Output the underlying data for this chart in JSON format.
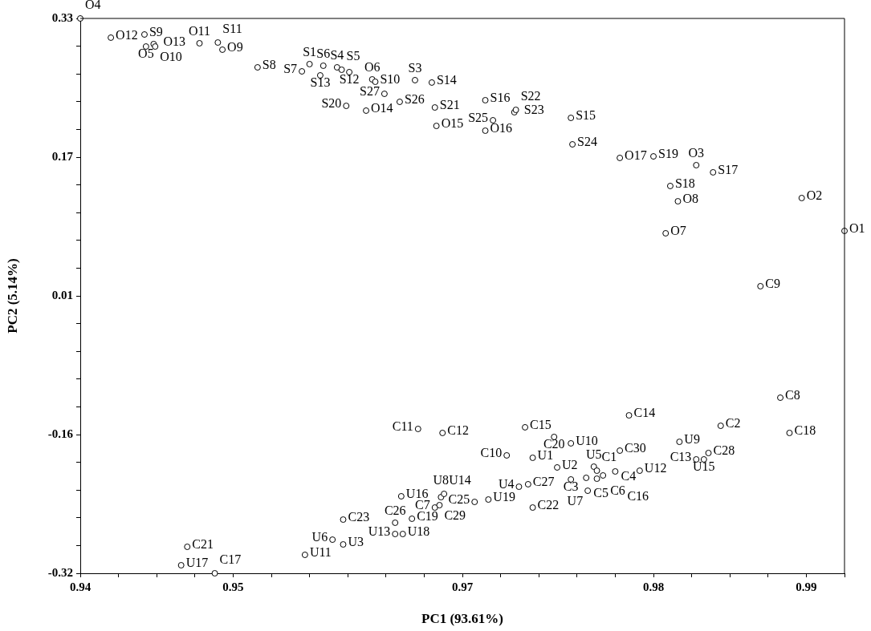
{
  "chart_data": {
    "type": "scatter",
    "xlabel": "PC1 (93.61%)",
    "ylabel": "PC2 (5.14%)",
    "marker": "circle",
    "xlim": [
      0.94,
      0.99
    ],
    "ylim": [
      -0.32,
      0.33
    ],
    "xticks": [
      0.94,
      {
        "value": 0.9425,
        "label": null
      },
      {
        "value": 0.945,
        "label": null
      },
      {
        "value": 0.9475,
        "label": null
      },
      0.95,
      {
        "value": 0.9525,
        "label": null
      },
      {
        "value": 0.955,
        "label": null
      },
      {
        "value": 0.9575,
        "label": null
      },
      {
        "value": 0.96,
        "label": null
      },
      {
        "value": 0.9625,
        "label": null
      },
      {
        "value": 0.965,
        "label": "0.97"
      },
      {
        "value": 0.9675,
        "label": null
      },
      {
        "value": 0.97,
        "label": null
      },
      {
        "value": 0.9725,
        "label": null
      },
      {
        "value": 0.975,
        "label": null
      },
      {
        "value": 0.9775,
        "label": "0.98"
      },
      {
        "value": 0.98,
        "label": null
      },
      {
        "value": 0.9825,
        "label": null
      },
      {
        "value": 0.985,
        "label": null
      },
      {
        "value": 0.9875,
        "label": "0.99"
      },
      {
        "value": 0.99,
        "label": null
      }
    ],
    "yticks": [
      -0.32,
      {
        "value": -0.2875,
        "label": null
      },
      {
        "value": -0.255,
        "label": null
      },
      {
        "value": -0.2225,
        "label": null
      },
      {
        "value": -0.19,
        "label": null
      },
      {
        "value": -0.1575,
        "label": "-0.16"
      },
      {
        "value": -0.125,
        "label": null
      },
      {
        "value": -0.0925,
        "label": null
      },
      {
        "value": -0.06,
        "label": null
      },
      {
        "value": -0.0275,
        "label": null
      },
      {
        "value": 0.005,
        "label": "0.01"
      },
      {
        "value": 0.0375,
        "label": null
      },
      {
        "value": 0.07,
        "label": null
      },
      {
        "value": 0.1025,
        "label": null
      },
      {
        "value": 0.135,
        "label": null
      },
      {
        "value": 0.1675,
        "label": "0.17"
      },
      {
        "value": 0.2,
        "label": null
      },
      {
        "value": 0.2325,
        "label": null
      },
      {
        "value": 0.265,
        "label": null
      },
      {
        "value": 0.2975,
        "label": null
      },
      0.33
    ],
    "series": [
      {
        "color": "#000000",
        "x": [
          0.94,
          0.942,
          0.9442,
          0.9443,
          0.9448,
          0.9449,
          0.9478,
          0.949,
          0.9493,
          0.9516,
          0.9545,
          0.955,
          0.9557,
          0.9559,
          0.9568,
          0.9571,
          0.9576,
          0.9591,
          0.9593,
          0.9599,
          0.9609,
          0.9619,
          0.963,
          0.9574,
          0.9587,
          0.9632,
          0.9633,
          0.9665,
          0.9665,
          0.967,
          0.9684,
          0.9685,
          0.9721,
          0.9722,
          0.9753,
          0.9775,
          0.9803,
          0.9814,
          0.9786,
          0.9791,
          0.9872,
          0.9783,
          0.99,
          0.9845,
          0.9621,
          0.9637,
          0.9691,
          0.971,
          0.9721,
          0.9679,
          0.9696,
          0.9759,
          0.9753,
          0.9712,
          0.9687,
          0.9693,
          0.9667,
          0.9658,
          0.9696,
          0.9721,
          0.9731,
          0.9732,
          0.9736,
          0.9738,
          0.9738,
          0.9742,
          0.975,
          0.9766,
          0.9858,
          0.9819,
          0.9864,
          0.9792,
          0.9803,
          0.9808,
          0.9811,
          0.947,
          0.9466,
          0.9488,
          0.9547,
          0.9565,
          0.9572,
          0.9572,
          0.961,
          0.9606,
          0.9606,
          0.9611,
          0.9617,
          0.9632,
          0.9635,
          0.9636,
          0.9638
        ],
        "values": [
          0.33,
          0.3075,
          0.3112,
          0.2971,
          0.3,
          0.2971,
          0.3009,
          0.3018,
          0.2934,
          0.2727,
          0.268,
          0.2765,
          0.2633,
          0.2746,
          0.2727,
          0.2699,
          0.2671,
          0.2586,
          0.2558,
          0.2417,
          0.2323,
          0.2577,
          0.2549,
          0.2276,
          0.222,
          0.2257,
          0.2041,
          0.2342,
          0.1985,
          0.2107,
          0.2201,
          0.2229,
          0.2135,
          0.1825,
          0.1666,
          0.1684,
          0.1581,
          0.1497,
          0.1337,
          0.1158,
          0.1196,
          0.0783,
          0.0811,
          0.0163,
          -0.1509,
          -0.1556,
          -0.149,
          -0.1603,
          -0.1678,
          -0.1819,
          -0.1847,
          -0.135,
          -0.1763,
          -0.196,
          -0.2186,
          -0.2157,
          -0.2336,
          -0.2364,
          -0.243,
          -0.2101,
          -0.2082,
          -0.2233,
          -0.1951,
          -0.1998,
          -0.2092,
          -0.2054,
          -0.2007,
          -0.1998,
          -0.1143,
          -0.1472,
          -0.1556,
          -0.166,
          -0.1866,
          -0.1866,
          -0.1791,
          -0.289,
          -0.3106,
          -0.32,
          -0.2984,
          -0.2806,
          -0.2571,
          -0.2862,
          -0.2298,
          -0.2608,
          -0.274,
          -0.274,
          -0.2561,
          -0.243,
          -0.2402,
          -0.2308,
          -0.227
        ]
      }
    ],
    "annotations": [
      {
        "text": "O4",
        "x": 0.94,
        "y": 0.33
      },
      {
        "text": "O12",
        "x": 0.942,
        "y": 0.3075
      },
      {
        "text": "S9",
        "x": 0.9442,
        "y": 0.3112
      },
      {
        "text": "O5",
        "x": 0.9443,
        "y": 0.2971
      },
      {
        "text": "O13",
        "x": 0.9448,
        "y": 0.3
      },
      {
        "text": "O10",
        "x": 0.9449,
        "y": 0.2971
      },
      {
        "text": "O11",
        "x": 0.9478,
        "y": 0.3009
      },
      {
        "text": "S11",
        "x": 0.949,
        "y": 0.3018
      },
      {
        "text": "O9",
        "x": 0.9493,
        "y": 0.2934
      },
      {
        "text": "S8",
        "x": 0.9516,
        "y": 0.2727
      },
      {
        "text": "S7",
        "x": 0.9545,
        "y": 0.268
      },
      {
        "text": "S1",
        "x": 0.955,
        "y": 0.2765
      },
      {
        "text": "S13",
        "x": 0.9557,
        "y": 0.2633
      },
      {
        "text": "S6",
        "x": 0.9559,
        "y": 0.2746
      },
      {
        "text": "S4",
        "x": 0.9568,
        "y": 0.2727
      },
      {
        "text": "S5",
        "x": 0.9571,
        "y": 0.2699
      },
      {
        "text": "S12",
        "x": 0.9576,
        "y": 0.2671
      },
      {
        "text": "O6",
        "x": 0.9591,
        "y": 0.2586
      },
      {
        "text": "S10",
        "x": 0.9593,
        "y": 0.2558
      },
      {
        "text": "S27",
        "x": 0.9599,
        "y": 0.2417
      },
      {
        "text": "S26",
        "x": 0.9609,
        "y": 0.2323
      },
      {
        "text": "S3",
        "x": 0.9619,
        "y": 0.2577
      },
      {
        "text": "S14",
        "x": 0.963,
        "y": 0.2549
      },
      {
        "text": "S20",
        "x": 0.9574,
        "y": 0.2276
      },
      {
        "text": "O14",
        "x": 0.9587,
        "y": 0.222
      },
      {
        "text": "S21",
        "x": 0.9632,
        "y": 0.2257
      },
      {
        "text": "O15",
        "x": 0.9633,
        "y": 0.2041
      },
      {
        "text": "S16",
        "x": 0.9665,
        "y": 0.2342
      },
      {
        "text": "O16",
        "x": 0.9665,
        "y": 0.1985
      },
      {
        "text": "S25",
        "x": 0.967,
        "y": 0.2107
      },
      {
        "text": "S23",
        "x": 0.9684,
        "y": 0.2201
      },
      {
        "text": "S22",
        "x": 0.9685,
        "y": 0.2229
      },
      {
        "text": "S15",
        "x": 0.9721,
        "y": 0.2135
      },
      {
        "text": "S24",
        "x": 0.9722,
        "y": 0.1825
      },
      {
        "text": "O17",
        "x": 0.9753,
        "y": 0.1666
      },
      {
        "text": "S19",
        "x": 0.9775,
        "y": 0.1684
      },
      {
        "text": "O3",
        "x": 0.9803,
        "y": 0.1581
      },
      {
        "text": "S17",
        "x": 0.9814,
        "y": 0.1497
      },
      {
        "text": "S18",
        "x": 0.9786,
        "y": 0.1337
      },
      {
        "text": "O8",
        "x": 0.9791,
        "y": 0.1158
      },
      {
        "text": "O2",
        "x": 0.9872,
        "y": 0.1196
      },
      {
        "text": "O7",
        "x": 0.9783,
        "y": 0.0783
      },
      {
        "text": "O1",
        "x": 0.99,
        "y": 0.0811
      },
      {
        "text": "C9",
        "x": 0.9845,
        "y": 0.0163
      },
      {
        "text": "C11",
        "x": 0.9621,
        "y": -0.1509
      },
      {
        "text": "C12",
        "x": 0.9637,
        "y": -0.1556
      },
      {
        "text": "C15",
        "x": 0.9691,
        "y": -0.149
      },
      {
        "text": "C20",
        "x": 0.971,
        "y": -0.1603
      },
      {
        "text": "U10",
        "x": 0.9721,
        "y": -0.1678
      },
      {
        "text": "C10",
        "x": 0.9679,
        "y": -0.1819
      },
      {
        "text": "U1",
        "x": 0.9696,
        "y": -0.1847
      },
      {
        "text": "C14",
        "x": 0.9759,
        "y": -0.135
      },
      {
        "text": "C30",
        "x": 0.9753,
        "y": -0.1763
      },
      {
        "text": "U2",
        "x": 0.9712,
        "y": -0.196
      },
      {
        "text": "U4",
        "x": 0.9687,
        "y": -0.2186
      },
      {
        "text": "C27",
        "x": 0.9693,
        "y": -0.2157
      },
      {
        "text": "U19",
        "x": 0.9667,
        "y": -0.2336
      },
      {
        "text": "C25",
        "x": 0.9658,
        "y": -0.2364
      },
      {
        "text": "C22",
        "x": 0.9696,
        "y": -0.243
      },
      {
        "text": "C3",
        "x": 0.9721,
        "y": -0.2101
      },
      {
        "text": "C5",
        "x": 0.9731,
        "y": -0.2082
      },
      {
        "text": "U7",
        "x": 0.9732,
        "y": -0.2233
      },
      {
        "text": "U5",
        "x": 0.9736,
        "y": -0.1951
      },
      {
        "text": "C1",
        "x": 0.9738,
        "y": -0.1998
      },
      {
        "text": "C4",
        "x": 0.9738,
        "y": -0.2092
      },
      {
        "text": "C6",
        "x": 0.9742,
        "y": -0.2054
      },
      {
        "text": "C16",
        "x": 0.975,
        "y": -0.2007
      },
      {
        "text": "U12",
        "x": 0.9766,
        "y": -0.1998
      },
      {
        "text": "C8",
        "x": 0.9858,
        "y": -0.1143
      },
      {
        "text": "C2",
        "x": 0.9819,
        "y": -0.1472
      },
      {
        "text": "C18",
        "x": 0.9864,
        "y": -0.1556
      },
      {
        "text": "U9",
        "x": 0.9792,
        "y": -0.166
      },
      {
        "text": "C13",
        "x": 0.9803,
        "y": -0.1866
      },
      {
        "text": "U15",
        "x": 0.9808,
        "y": -0.1866
      },
      {
        "text": "C28",
        "x": 0.9811,
        "y": -0.1791
      },
      {
        "text": "C21",
        "x": 0.947,
        "y": -0.289
      },
      {
        "text": "U17",
        "x": 0.9466,
        "y": -0.3106
      },
      {
        "text": "C17",
        "x": 0.9488,
        "y": -0.32
      },
      {
        "text": "U11",
        "x": 0.9547,
        "y": -0.2984
      },
      {
        "text": "U6",
        "x": 0.9565,
        "y": -0.2806
      },
      {
        "text": "C23",
        "x": 0.9572,
        "y": -0.2571
      },
      {
        "text": "U3",
        "x": 0.9572,
        "y": -0.2862
      },
      {
        "text": "U16",
        "x": 0.961,
        "y": -0.2298
      },
      {
        "text": "C26",
        "x": 0.9606,
        "y": -0.2608
      },
      {
        "text": "U13",
        "x": 0.9606,
        "y": -0.274
      },
      {
        "text": "U18",
        "x": 0.9611,
        "y": -0.274
      },
      {
        "text": "C19",
        "x": 0.9617,
        "y": -0.2561
      },
      {
        "text": "C7",
        "x": 0.9632,
        "y": -0.243
      },
      {
        "text": "C29",
        "x": 0.9635,
        "y": -0.2402
      },
      {
        "text": "U8",
        "x": 0.9636,
        "y": -0.2308
      },
      {
        "text": "U14",
        "x": 0.9638,
        "y": -0.227
      }
    ]
  }
}
